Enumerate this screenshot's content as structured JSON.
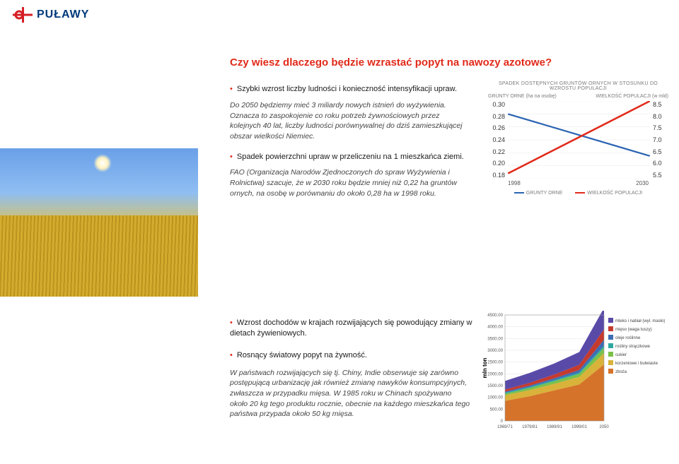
{
  "logo": {
    "text": "PUŁAWY",
    "brand_red": "#d61f26",
    "brand_blue": "#003a7a"
  },
  "section1": {
    "headline": "Czy wiesz dlaczego będzie wzrastać popyt na nawozy azotowe?",
    "bullet1": "Szybki wzrost liczby ludności i konieczność intensyfikacji upraw.",
    "note1": "Do 2050 będziemy mieć 3 miliardy nowych istnień do wyżywienia. Oznacza to zaspokojenie co roku potrzeb żywnościowych przez kolejnych 40 lat, liczby ludności porównywalnej do dziś zamieszkującej obszar wielkości Niemiec.",
    "bullet2": "Spadek powierzchni upraw w przeliczeniu na 1 mieszkańca ziemi.",
    "note2": "FAO (Organizacja Narodów Zjednoczonych do spraw Wyżywienia i Rolnictwa) szacuje, że w 2030 roku będzie  mniej niż 0,22 ha gruntów ornych, na osobę w porównaniu do około 0,28 ha w 1998 roku."
  },
  "chart1": {
    "title": "SPADEK DOSTĘPNYCH GRUNTÓW ORNYCH W STOSUNKU DO WZROSTU POPULACJI",
    "left_axis_label": "GRUNTY ORNE (ha na osobę)",
    "right_axis_label": "WIELKOŚĆ POPULACJI (w mld)",
    "left_ticks": [
      "0.30",
      "0.28",
      "0.26",
      "0.24",
      "0.22",
      "0.20",
      "0.18"
    ],
    "right_ticks": [
      "8.5",
      "8.0",
      "7.5",
      "7.0",
      "6.5",
      "6.0",
      "5.5"
    ],
    "x_labels": [
      "1998",
      "2030"
    ],
    "series_blue": {
      "color": "#2b64b3",
      "points": [
        [
          0,
          0.28
        ],
        [
          1,
          0.215
        ]
      ]
    },
    "series_red": {
      "color": "#e12a1a",
      "points": [
        [
          0,
          0.188
        ],
        [
          1,
          0.3
        ]
      ]
    },
    "y_left_min": 0.18,
    "y_left_max": 0.3,
    "legend": [
      {
        "label": "GRUNTY ORNE",
        "color": "#2b64b3"
      },
      {
        "label": "WIELKOŚĆ POPULACJI",
        "color": "#e12a1a"
      }
    ],
    "grid_color": "#e9e9e9"
  },
  "section2": {
    "bullet3": "Wzrost dochodów w krajach rozwijających się powodujący zmiany w dietach żywieniowych.",
    "bullet4": "Rosnący światowy popyt na żywność.",
    "note3": "W państwach rozwijających się tj. Chiny, Indie obserwuje się zarówno postępującą urbanizację jak również zmianę nawyków konsumpcyjnych, zwłaszcza  w przypadku mięsa. W 1985 roku w Chinach spożywano około 20 kg tego produktu rocznie, obecnie na każdego mieszkańca tego państwa przypada około 50 kg mięsa."
  },
  "chart2": {
    "type": "stacked-area",
    "y_label": "mln ton",
    "x_ticks": [
      "1969/71",
      "1979/81",
      "1989/91",
      "1999/01",
      "2050"
    ],
    "y_ticks": [
      0,
      500,
      1000,
      1500,
      2000,
      2500,
      3000,
      3500,
      4000,
      4500
    ],
    "y_min": 0,
    "y_max": 4500,
    "background": "#ffffff",
    "grid_color": "#d8d8d8",
    "legend": [
      {
        "label": "mleko i nabiał (wył. masło)",
        "color": "#5a4aa8"
      },
      {
        "label": "mięso (waga tuszy)",
        "color": "#c43a2e"
      },
      {
        "label": "oleje roślinne",
        "color": "#3e6db3"
      },
      {
        "label": "rośliny strączkowe",
        "color": "#2fa8a0"
      },
      {
        "label": "cukier",
        "color": "#7cc04a"
      },
      {
        "label": "korzeniowe i bulwiaste",
        "color": "#d9b23a"
      },
      {
        "label": "zboża",
        "color": "#d6732a"
      }
    ],
    "series": {
      "zboża": [
        850,
        1050,
        1300,
        1550,
        2400
      ],
      "korzeniowe": [
        240,
        260,
        280,
        320,
        480
      ],
      "cukier": [
        70,
        90,
        110,
        130,
        230
      ],
      "strączkowe": [
        40,
        45,
        50,
        55,
        90
      ],
      "oleje": [
        40,
        55,
        75,
        110,
        250
      ],
      "mięso": [
        90,
        120,
        160,
        220,
        450
      ],
      "mleko": [
        370,
        420,
        470,
        540,
        900
      ]
    },
    "order": [
      "zboża",
      "korzeniowe",
      "cukier",
      "strączkowe",
      "oleje",
      "mięso",
      "mleko"
    ],
    "colors": {
      "zboża": "#d6732a",
      "korzeniowe": "#d9b23a",
      "cukier": "#7cc04a",
      "strączkowe": "#2fa8a0",
      "oleje": "#3e6db3",
      "mięso": "#c43a2e",
      "mleko": "#5a4aa8"
    }
  }
}
